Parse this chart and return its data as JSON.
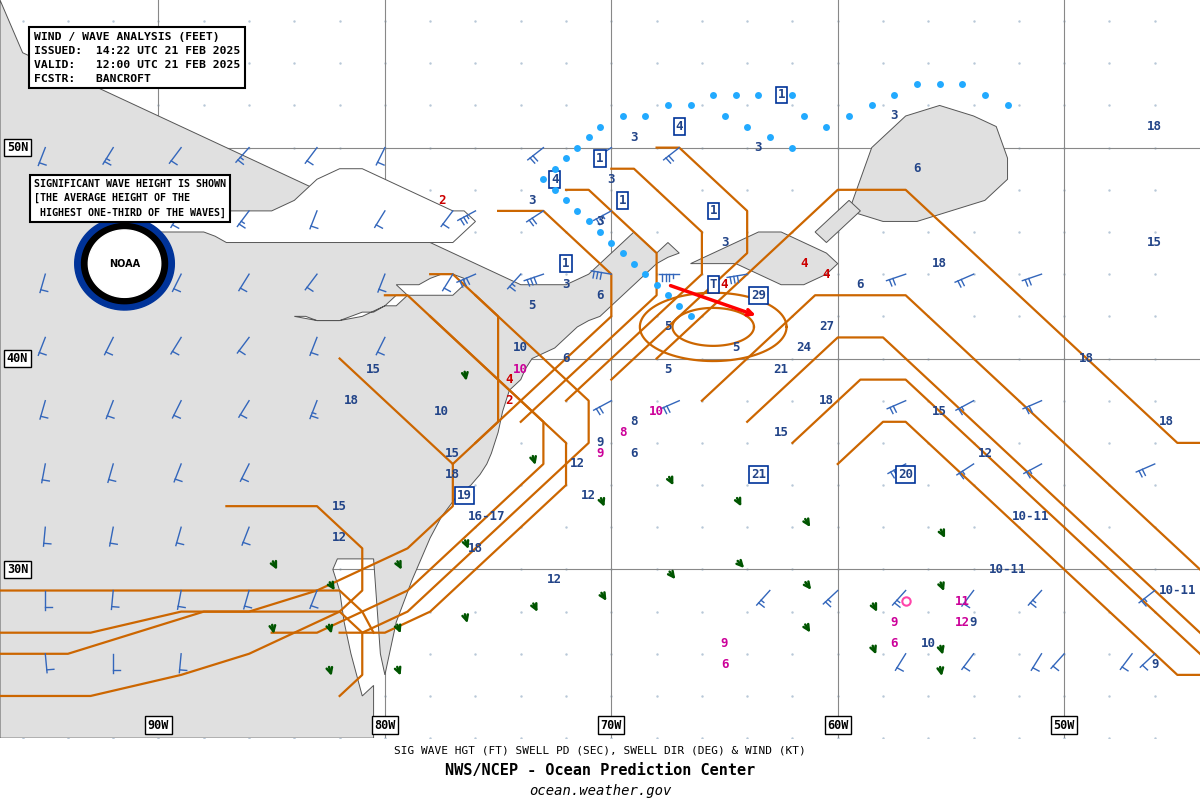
{
  "title_box": {
    "line1": "WIND / WAVE ANALYSIS (FEET)",
    "line2": "ISSUED:  14:22 UTC 21 FEB 2025",
    "line3": "VALID:   12:00 UTC 21 FEB 2025",
    "line4": "FCSTR:   BANCROFT"
  },
  "legend_box": {
    "line1": "SIGNIFICANT WAVE HEIGHT IS SHOWN",
    "line2": "[THE AVERAGE HEIGHT OF THE",
    "line3": " HIGHEST ONE-THIRD OF THE WAVES]"
  },
  "caption_line1": "SIG WAVE HGT (FT) SWELL PD (SEC), SWELL DIR (DEG) & WIND (KT)",
  "caption_line2": "NWS/NCEP - Ocean Prediction Center",
  "caption_line3": "ocean.weather.gov",
  "background_color": "#ffffff",
  "grid_color": "#b8c8d8",
  "contour_color": "#cc6600",
  "wind_color_blue": "#3366bb",
  "swell_color_blue": "#224488",
  "wave_color_magenta": "#cc0099",
  "wave_color_red": "#cc0000",
  "wave_color_green": "#005500",
  "box_outline": "#003399",
  "lat_labels": [
    "50N",
    "40N",
    "30N"
  ],
  "lat_values": [
    50,
    40,
    30
  ],
  "lon_labels": [
    "90W",
    "80W",
    "70W",
    "60W",
    "50W"
  ],
  "lon_values": [
    -90,
    -80,
    -70,
    -60,
    -50
  ],
  "map_xlim": [
    -97,
    -44
  ],
  "map_ylim": [
    22,
    57
  ],
  "fig_width": 12.0,
  "fig_height": 7.98
}
